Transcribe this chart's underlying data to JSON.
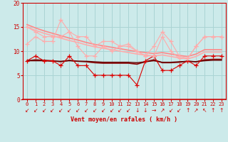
{
  "background_color": "#cceaea",
  "grid_color": "#aad4d4",
  "xlabel": "Vent moyen/en rafales ( km/h )",
  "xlim": [
    -0.5,
    23.5
  ],
  "ylim": [
    0,
    20
  ],
  "yticks": [
    0,
    5,
    10,
    15,
    20
  ],
  "xticks": [
    0,
    1,
    2,
    3,
    4,
    5,
    6,
    7,
    8,
    9,
    10,
    11,
    12,
    13,
    14,
    15,
    16,
    17,
    18,
    19,
    20,
    21,
    22,
    23
  ],
  "lines": [
    {
      "x": [
        0,
        1,
        2,
        3,
        4,
        5,
        6,
        7,
        8,
        9,
        10,
        11,
        12,
        13,
        14,
        15,
        16,
        17,
        18,
        19,
        20,
        21,
        22,
        23
      ],
      "y": [
        8,
        9,
        8,
        8,
        7,
        9,
        7,
        7,
        5,
        5,
        5,
        5,
        5,
        3,
        8,
        9,
        6,
        6,
        7,
        8,
        7,
        9,
        9,
        9
      ],
      "color": "#dd0000",
      "lw": 0.8,
      "marker": "+",
      "ms": 4
    },
    {
      "x": [
        0,
        1,
        2,
        3,
        4,
        5,
        6,
        7,
        8,
        9,
        10,
        11,
        12,
        13,
        14,
        15,
        16,
        17,
        18,
        19,
        20,
        21,
        22,
        23
      ],
      "y": [
        8,
        8.2,
        8.1,
        8.0,
        7.8,
        8.1,
        7.9,
        7.8,
        7.6,
        7.5,
        7.5,
        7.5,
        7.5,
        7.3,
        7.8,
        8.2,
        7.6,
        7.6,
        7.7,
        7.9,
        7.8,
        8.2,
        8.3,
        8.3
      ],
      "color": "#880000",
      "lw": 1.2,
      "marker": null,
      "ms": 0
    },
    {
      "x": [
        0,
        1,
        2,
        3,
        4,
        5,
        6,
        7,
        8,
        9,
        10,
        11,
        12,
        13,
        14,
        15,
        16,
        17,
        18,
        19,
        20,
        21,
        22,
        23
      ],
      "y": [
        8.0,
        8.0,
        8.0,
        7.9,
        7.9,
        8.0,
        7.9,
        7.9,
        7.8,
        7.7,
        7.7,
        7.7,
        7.7,
        7.6,
        7.8,
        8.0,
        7.7,
        7.7,
        7.8,
        7.9,
        7.8,
        8.0,
        8.1,
        8.1
      ],
      "color": "#660000",
      "lw": 1.0,
      "marker": null,
      "ms": 0
    },
    {
      "x": [
        0,
        1,
        2,
        3,
        4,
        5,
        6,
        7,
        8,
        9,
        10,
        11,
        12,
        13,
        14,
        15,
        16,
        17,
        18,
        19,
        20,
        21,
        22,
        23
      ],
      "y": [
        11.5,
        13,
        12,
        12,
        16.5,
        14,
        11,
        9,
        9,
        11,
        10,
        11,
        11.5,
        10,
        9,
        11,
        14,
        12,
        9,
        8.5,
        11,
        13,
        13,
        13
      ],
      "color": "#ffaaaa",
      "lw": 0.8,
      "marker": "+",
      "ms": 4
    },
    {
      "x": [
        0,
        1,
        2,
        3,
        4,
        5,
        6,
        7,
        8,
        9,
        10,
        11,
        12,
        13,
        14,
        15,
        16,
        17,
        18,
        19,
        20,
        21,
        22,
        23
      ],
      "y": [
        15,
        14,
        13,
        13,
        13,
        14,
        13,
        13,
        11,
        12,
        12,
        11,
        11,
        10,
        9,
        9,
        13,
        10,
        8.5,
        8.5,
        11,
        13,
        13,
        13
      ],
      "color": "#ffaaaa",
      "lw": 0.8,
      "marker": "+",
      "ms": 4
    },
    {
      "x": [
        0,
        1,
        2,
        3,
        4,
        5,
        6,
        7,
        8,
        9,
        10,
        11,
        12,
        13,
        14,
        15,
        16,
        17,
        18,
        19,
        20,
        21,
        22,
        23
      ],
      "y": [
        15.0,
        14.3,
        13.7,
        13.2,
        12.7,
        12.2,
        11.8,
        11.3,
        10.9,
        10.6,
        10.3,
        10.0,
        9.7,
        9.4,
        9.2,
        9.0,
        9.2,
        8.9,
        8.6,
        8.4,
        8.9,
        9.8,
        9.8,
        9.8
      ],
      "color": "#ffaaaa",
      "lw": 1.2,
      "marker": null,
      "ms": 0
    },
    {
      "x": [
        0,
        1,
        2,
        3,
        4,
        5,
        6,
        7,
        8,
        9,
        10,
        11,
        12,
        13,
        14,
        15,
        16,
        17,
        18,
        19,
        20,
        21,
        22,
        23
      ],
      "y": [
        15.5,
        14.8,
        14.2,
        13.7,
        13.2,
        12.7,
        12.3,
        11.8,
        11.4,
        11.1,
        10.8,
        10.5,
        10.2,
        9.9,
        9.7,
        9.5,
        9.7,
        9.4,
        9.1,
        8.9,
        9.4,
        10.3,
        10.3,
        10.3
      ],
      "color": "#ff8888",
      "lw": 1.2,
      "marker": null,
      "ms": 0
    }
  ],
  "arrow_symbols": [
    "↙",
    "↙",
    "↙",
    "↙",
    "↙",
    "↙",
    "↙",
    "↙",
    "↙",
    "↙",
    "↙",
    "↙",
    "↙",
    "↓",
    "↓",
    "→",
    "↗",
    "↙",
    "↙",
    "↑",
    "↗",
    "↖",
    "↑",
    "↑"
  ],
  "xlabel_color": "#cc0000",
  "tick_color": "#cc0000",
  "axis_color": "#cc0000",
  "spine_color": "#cc0000"
}
